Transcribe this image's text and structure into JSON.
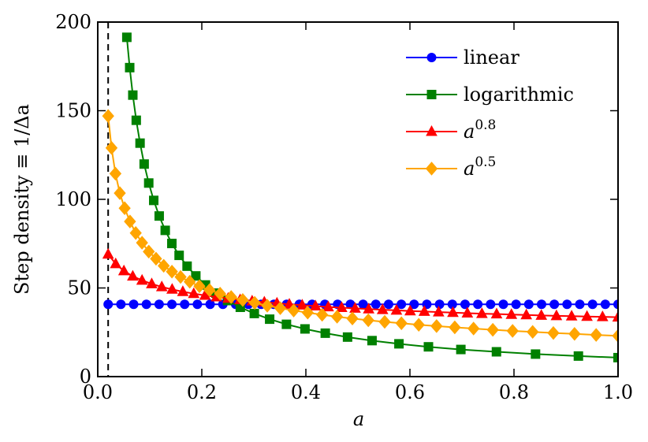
{
  "chart_data": {
    "type": "line",
    "xlabel": "a",
    "ylabel": "Step density ≡ 1/Δa",
    "xlim": [
      0,
      1
    ],
    "ylim": [
      0,
      200
    ],
    "xticks": [
      {
        "value": 0,
        "label": "0.0"
      },
      0.2,
      0.4,
      0.6,
      0.8,
      {
        "value": 1,
        "label": "1.0"
      }
    ],
    "yticks": [
      0,
      50,
      100,
      150,
      200
    ],
    "vline": 0.02,
    "legend": "upper right",
    "series": [
      {
        "name": "linear",
        "color": "#0000ff",
        "marker": "circle",
        "x": [
          0.02,
          0.0445,
          0.069,
          0.0935,
          0.118,
          0.1425,
          0.167,
          0.1915,
          0.216,
          0.2405,
          0.265,
          0.2895,
          0.314,
          0.3385,
          0.363,
          0.3875,
          0.412,
          0.4365,
          0.461,
          0.4855,
          0.51,
          0.5345,
          0.559,
          0.5835,
          0.608,
          0.6325,
          0.657,
          0.6815,
          0.706,
          0.7305,
          0.755,
          0.7795,
          0.804,
          0.8285,
          0.853,
          0.8775,
          0.902,
          0.9265,
          0.951,
          0.9755,
          1.0
        ],
        "values": [
          40.8,
          40.8,
          40.8,
          40.8,
          40.8,
          40.8,
          40.8,
          40.8,
          40.8,
          40.8,
          40.8,
          40.8,
          40.8,
          40.8,
          40.8,
          40.8,
          40.8,
          40.8,
          40.8,
          40.8,
          40.8,
          40.8,
          40.8,
          40.8,
          40.8,
          40.8,
          40.8,
          40.8,
          40.8,
          40.8,
          40.8,
          40.8,
          40.8,
          40.8,
          40.8,
          40.8,
          40.8,
          40.8,
          40.8,
          40.8,
          40.8
        ]
      },
      {
        "name": "logarithmic",
        "color": "#008000",
        "marker": "square",
        "x": [
          0.0559,
          0.0614,
          0.0674,
          0.074,
          0.0813,
          0.0892,
          0.098,
          0.1076,
          0.1181,
          0.1297,
          0.1424,
          0.1564,
          0.1717,
          0.1885,
          0.207,
          0.2273,
          0.2496,
          0.274,
          0.3009,
          0.3304,
          0.3627,
          0.3983,
          0.4373,
          0.4801,
          0.5272,
          0.5789,
          0.6356,
          0.6979,
          0.7663,
          0.8414,
          0.9238,
          1.0
        ],
        "values": [
          191.4,
          174.3,
          158.8,
          144.6,
          131.7,
          119.9,
          109.2,
          99.4,
          90.6,
          82.5,
          75.1,
          68.4,
          62.3,
          56.8,
          51.7,
          47.1,
          42.9,
          39.1,
          35.6,
          32.4,
          29.5,
          26.9,
          24.5,
          22.3,
          20.3,
          18.5,
          16.8,
          15.3,
          14.0,
          12.7,
          11.6,
          10.7
        ]
      },
      {
        "name": "a^0.8",
        "color": "#ff0000",
        "marker": "triangle",
        "x": [
          0.02,
          0.0345,
          0.0503,
          0.0673,
          0.0851,
          0.1037,
          0.1231,
          0.143,
          0.1635,
          0.1845,
          0.2062,
          0.2282,
          0.2506,
          0.2736,
          0.2967,
          0.3202,
          0.3444,
          0.3682,
          0.393,
          0.4185,
          0.443,
          0.4688,
          0.4946,
          0.5207,
          0.5474,
          0.5741,
          0.6005,
          0.6277,
          0.6551,
          0.6826,
          0.7104,
          0.7384,
          0.7666,
          0.7951,
          0.8237,
          0.8526,
          0.8816,
          0.9108,
          0.9403,
          0.9702,
          1.0
        ],
        "values": [
          69.0,
          63.6,
          59.6,
          56.6,
          54.3,
          52.3,
          50.6,
          49.2,
          47.9,
          46.8,
          45.8,
          44.9,
          44.1,
          43.3,
          42.6,
          42.0,
          41.4,
          40.8,
          40.3,
          39.8,
          39.3,
          38.9,
          38.5,
          38.1,
          37.7,
          37.4,
          37.0,
          36.7,
          36.4,
          36.1,
          35.8,
          35.5,
          35.3,
          35.0,
          34.8,
          34.5,
          34.3,
          34.1,
          33.9,
          33.7,
          33.5
        ]
      },
      {
        "name": "a^0.5",
        "color": "#ffa500",
        "marker": "diamond",
        "x": [
          0.02,
          0.0265,
          0.034,
          0.0424,
          0.0517,
          0.0619,
          0.073,
          0.0851,
          0.0981,
          0.112,
          0.1268,
          0.1426,
          0.1592,
          0.1768,
          0.1954,
          0.2148,
          0.2351,
          0.2564,
          0.2787,
          0.3017,
          0.3258,
          0.3508,
          0.3766,
          0.4035,
          0.4313,
          0.46,
          0.4894,
          0.52,
          0.5515,
          0.5837,
          0.617,
          0.6512,
          0.6862,
          0.7223,
          0.7593,
          0.7973,
          0.8359,
          0.8757,
          0.9164,
          0.9579,
          1.0
        ],
        "values": [
          147.0,
          129.0,
          114.5,
          103.5,
          95.0,
          87.5,
          81.0,
          75.5,
          70.5,
          66.5,
          62.5,
          59.2,
          56.2,
          53.5,
          51.0,
          48.8,
          46.8,
          44.9,
          43.2,
          41.6,
          40.0,
          38.6,
          37.3,
          36.1,
          34.9,
          33.8,
          32.8,
          31.8,
          30.9,
          30.1,
          29.2,
          28.5,
          27.8,
          27.1,
          26.4,
          25.8,
          25.2,
          24.6,
          24.1,
          23.5,
          23.0
        ]
      }
    ]
  }
}
